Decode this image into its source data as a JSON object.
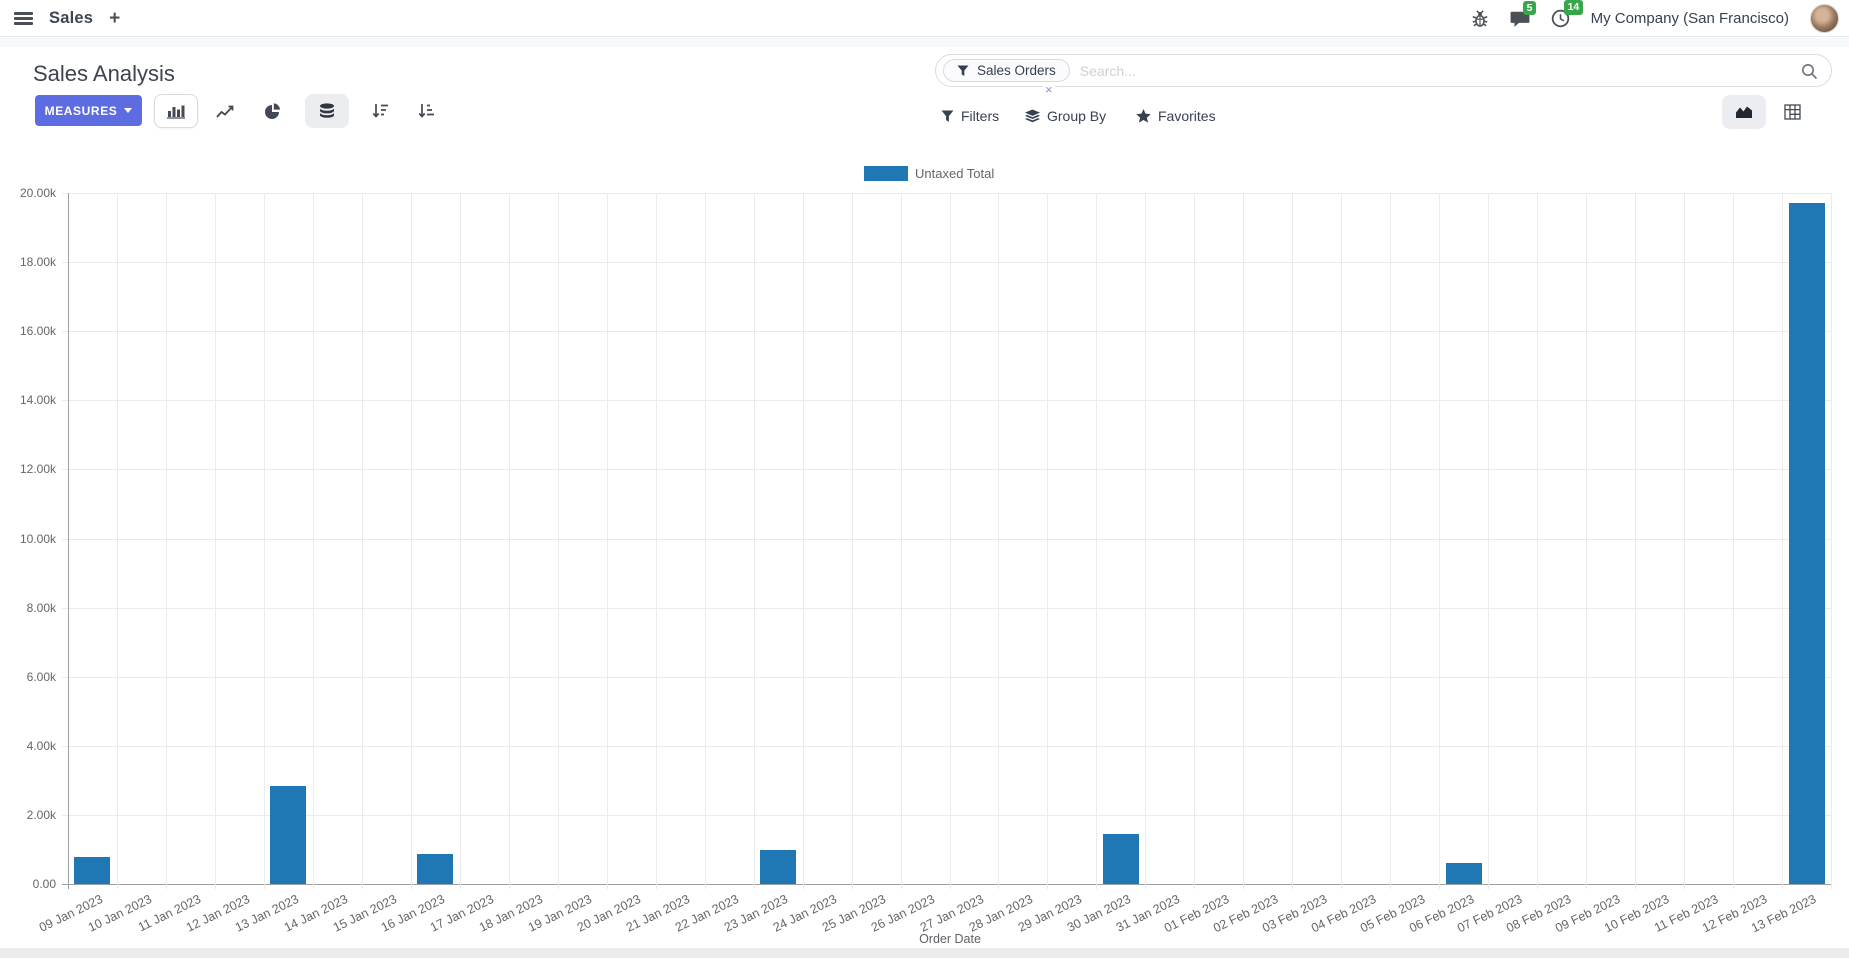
{
  "colors": {
    "accent": "#5d6ce0",
    "bar": "#1f77b4",
    "badge_green": "#36a849"
  },
  "navbar": {
    "app_name": "Sales",
    "plus_label": "+",
    "systray": {
      "messages_count": "5",
      "activities_count": "14",
      "company": "My Company (San Francisco)"
    }
  },
  "control_panel": {
    "title": "Sales Analysis",
    "measures_label": "MEASURES",
    "search": {
      "facet_label": "Sales Orders",
      "remove_facet_label": "×",
      "placeholder": "Search..."
    },
    "menus": {
      "filters": "Filters",
      "group_by": "Group By",
      "favorites": "Favorites"
    }
  },
  "icons": [
    "hamburger-icon",
    "plus-icon",
    "bug-icon",
    "chat-icon",
    "clock-icon",
    "avatar",
    "bar-chart-icon",
    "line-chart-icon",
    "pie-chart-icon",
    "stacked-icon",
    "sort-desc-icon",
    "sort-asc-icon",
    "filter-funnel-icon",
    "layers-icon",
    "star-icon",
    "search-icon",
    "area-view-icon",
    "pivot-view-icon"
  ],
  "chart_data": {
    "type": "bar",
    "title": "",
    "legend": [
      "Untaxed Total"
    ],
    "legend_position": "top-center",
    "series_color": "#1f77b4",
    "xlabel": "Order Date",
    "ylabel": "",
    "ylim": [
      0,
      20000
    ],
    "ytick_step": 2000,
    "ytick_labels": [
      "0.00",
      "2.00k",
      "4.00k",
      "6.00k",
      "8.00k",
      "10.00k",
      "12.00k",
      "14.00k",
      "16.00k",
      "18.00k",
      "20.00k"
    ],
    "grid": true,
    "categories": [
      "09 Jan 2023",
      "10 Jan 2023",
      "11 Jan 2023",
      "12 Jan 2023",
      "13 Jan 2023",
      "14 Jan 2023",
      "15 Jan 2023",
      "16 Jan 2023",
      "17 Jan 2023",
      "18 Jan 2023",
      "19 Jan 2023",
      "20 Jan 2023",
      "21 Jan 2023",
      "22 Jan 2023",
      "23 Jan 2023",
      "24 Jan 2023",
      "25 Jan 2023",
      "26 Jan 2023",
      "27 Jan 2023",
      "28 Jan 2023",
      "29 Jan 2023",
      "30 Jan 2023",
      "31 Jan 2023",
      "01 Feb 2023",
      "02 Feb 2023",
      "03 Feb 2023",
      "04 Feb 2023",
      "05 Feb 2023",
      "06 Feb 2023",
      "07 Feb 2023",
      "08 Feb 2023",
      "09 Feb 2023",
      "10 Feb 2023",
      "11 Feb 2023",
      "12 Feb 2023",
      "13 Feb 2023"
    ],
    "series": [
      {
        "name": "Untaxed Total",
        "values": [
          780,
          0,
          0,
          0,
          2850,
          0,
          0,
          870,
          0,
          0,
          0,
          0,
          0,
          0,
          990,
          0,
          0,
          0,
          0,
          0,
          0,
          1450,
          0,
          0,
          0,
          0,
          0,
          0,
          600,
          0,
          0,
          0,
          0,
          0,
          0,
          19700
        ]
      }
    ]
  }
}
